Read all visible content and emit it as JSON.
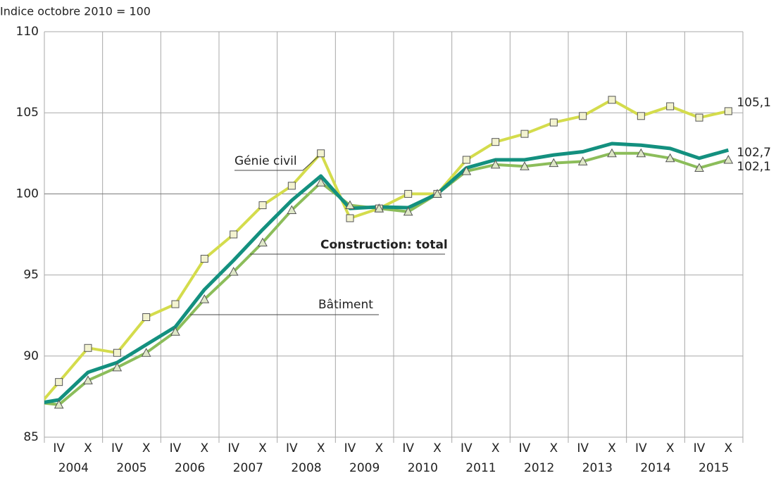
{
  "chart_data": {
    "type": "line",
    "y_axis_label": "Indice octobre 2010 = 100",
    "categories": [
      null,
      "IV",
      "X",
      "IV",
      "X",
      "IV",
      "X",
      "IV",
      "X",
      "IV",
      "X",
      "IV",
      "X",
      "IV",
      "X",
      "IV",
      "X",
      "IV",
      "X",
      "IV",
      "X",
      "IV",
      "X",
      "IV",
      "X"
    ],
    "years": [
      "2004",
      "2005",
      "2006",
      "2007",
      "2008",
      "2009",
      "2010",
      "2011",
      "2012",
      "2013",
      "2014",
      "2015"
    ],
    "ylim": [
      85,
      110
    ],
    "yticks": [
      85,
      90,
      95,
      100,
      105,
      110
    ],
    "grid": true,
    "series": [
      {
        "name": "Génie civil",
        "color": "#d4dc4c",
        "marker": "square",
        "values": [
          86.3,
          88.4,
          90.5,
          90.2,
          92.4,
          93.2,
          96.0,
          97.5,
          99.3,
          100.5,
          102.5,
          98.5,
          99.1,
          100.0,
          100.0,
          102.1,
          103.2,
          103.7,
          104.4,
          104.8,
          105.8,
          104.8,
          105.4,
          104.7,
          105.1
        ],
        "value_labels": [
          null,
          null,
          null,
          null,
          null,
          null,
          null,
          null,
          null,
          null,
          null,
          null,
          null,
          null,
          null,
          null,
          null,
          null,
          null,
          null,
          null,
          null,
          null,
          null,
          "105,1"
        ]
      },
      {
        "name": "Construction: total",
        "color": "#13907f",
        "marker": "none",
        "values": [
          87.0,
          87.3,
          89.0,
          89.6,
          90.7,
          91.8,
          94.1,
          95.9,
          97.8,
          99.6,
          101.1,
          99.1,
          99.2,
          99.15,
          100.0,
          101.6,
          102.1,
          102.1,
          102.4,
          102.6,
          103.1,
          103.0,
          102.8,
          102.2,
          102.7
        ],
        "value_labels": [
          null,
          null,
          null,
          null,
          null,
          null,
          null,
          null,
          null,
          null,
          null,
          null,
          null,
          null,
          null,
          null,
          null,
          null,
          null,
          null,
          null,
          null,
          null,
          null,
          "102,7"
        ]
      },
      {
        "name": "Bâtiment",
        "color": "#8cbd5a",
        "marker": "triangle",
        "values": [
          87.2,
          87.0,
          88.5,
          89.3,
          90.2,
          91.5,
          93.5,
          95.2,
          97.0,
          99.0,
          100.7,
          99.3,
          99.1,
          98.9,
          100.0,
          101.4,
          101.8,
          101.7,
          101.9,
          102.0,
          102.5,
          102.5,
          102.2,
          101.6,
          102.1
        ],
        "value_labels": [
          null,
          null,
          null,
          null,
          null,
          null,
          null,
          null,
          null,
          null,
          null,
          null,
          null,
          null,
          null,
          null,
          null,
          null,
          null,
          null,
          null,
          null,
          null,
          null,
          "102,1"
        ]
      }
    ]
  }
}
